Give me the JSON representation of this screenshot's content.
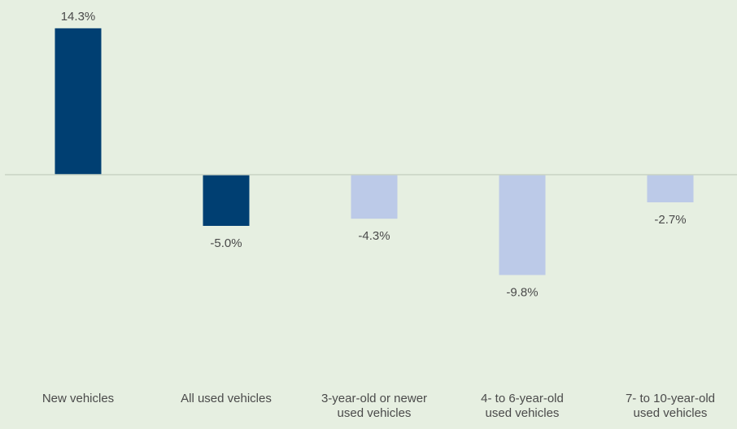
{
  "chart_data": {
    "type": "bar",
    "categories": [
      "New vehicles",
      "All used vehicles",
      "3-year-old or newer\nused vehicles",
      "4- to 6-year-old\nused vehicles",
      "7- to 10-year-old\nused vehicles"
    ],
    "values": [
      14.3,
      -5.0,
      -4.3,
      -9.8,
      -2.7
    ],
    "data_labels": [
      "14.3%",
      "-5.0%",
      "-4.3%",
      "-9.8%",
      "-2.7%"
    ],
    "bar_colors": [
      "#003f72",
      "#003f72",
      "#bccae8",
      "#bccae8",
      "#bccae8"
    ],
    "ylim": [
      -16,
      16
    ],
    "grid": false,
    "legend": "none"
  },
  "colors": {
    "background": "#e6efe1",
    "axis": "#c9d3c4",
    "dark_bar": "#003f72",
    "light_bar": "#bccae8",
    "text": "#4a4a4a"
  }
}
